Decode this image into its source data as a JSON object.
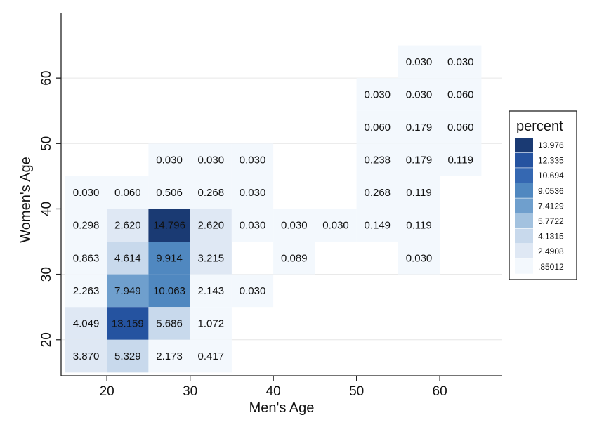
{
  "chart_data": {
    "type": "heatmap",
    "title": "",
    "xlabel": "Men's Age",
    "ylabel": "Women's Age",
    "xlim": [
      14.5,
      67.5
    ],
    "ylim": [
      14.5,
      70
    ],
    "x_ticks": [
      "20",
      "30",
      "40",
      "50",
      "60"
    ],
    "y_ticks": [
      "20",
      "30",
      "40",
      "50",
      "60"
    ],
    "x_tick_values": [
      20,
      30,
      40,
      50,
      60
    ],
    "y_tick_values": [
      20,
      30,
      40,
      50,
      60
    ],
    "grid": true,
    "cell_width": 5,
    "cell_height": 5,
    "legend": {
      "title": "percent",
      "placement": "right",
      "entries": [
        "13.976",
        "12.335",
        "10.694",
        "9.0536",
        "7.4129",
        "5.7722",
        "4.1315",
        "2.4908",
        ".85012"
      ],
      "colors": [
        "#1a3a73",
        "#2553a0",
        "#3568b2",
        "#5088c0",
        "#6f9fcd",
        "#a3c2df",
        "#c8d9ec",
        "#dfe8f4",
        "#f3f8fd"
      ]
    },
    "cells": [
      {
        "x": 57.5,
        "y": 62.5,
        "label": "0.030",
        "value": 0.03
      },
      {
        "x": 62.5,
        "y": 62.5,
        "label": "0.030",
        "value": 0.03
      },
      {
        "x": 52.5,
        "y": 57.5,
        "label": "0.030",
        "value": 0.03
      },
      {
        "x": 57.5,
        "y": 57.5,
        "label": "0.030",
        "value": 0.03
      },
      {
        "x": 62.5,
        "y": 57.5,
        "label": "0.060",
        "value": 0.06
      },
      {
        "x": 52.5,
        "y": 52.5,
        "label": "0.060",
        "value": 0.06
      },
      {
        "x": 57.5,
        "y": 52.5,
        "label": "0.179",
        "value": 0.179
      },
      {
        "x": 62.5,
        "y": 52.5,
        "label": "0.060",
        "value": 0.06
      },
      {
        "x": 27.5,
        "y": 47.5,
        "label": "0.030",
        "value": 0.03
      },
      {
        "x": 32.5,
        "y": 47.5,
        "label": "0.030",
        "value": 0.03
      },
      {
        "x": 37.5,
        "y": 47.5,
        "label": "0.030",
        "value": 0.03
      },
      {
        "x": 52.5,
        "y": 47.5,
        "label": "0.238",
        "value": 0.238
      },
      {
        "x": 57.5,
        "y": 47.5,
        "label": "0.179",
        "value": 0.179
      },
      {
        "x": 62.5,
        "y": 47.5,
        "label": "0.119",
        "value": 0.119
      },
      {
        "x": 17.5,
        "y": 42.5,
        "label": "0.030",
        "value": 0.03
      },
      {
        "x": 22.5,
        "y": 42.5,
        "label": "0.060",
        "value": 0.06
      },
      {
        "x": 27.5,
        "y": 42.5,
        "label": "0.506",
        "value": 0.506
      },
      {
        "x": 32.5,
        "y": 42.5,
        "label": "0.268",
        "value": 0.268
      },
      {
        "x": 37.5,
        "y": 42.5,
        "label": "0.030",
        "value": 0.03
      },
      {
        "x": 52.5,
        "y": 42.5,
        "label": "0.268",
        "value": 0.268
      },
      {
        "x": 57.5,
        "y": 42.5,
        "label": "0.119",
        "value": 0.119
      },
      {
        "x": 17.5,
        "y": 37.5,
        "label": "0.298",
        "value": 0.298
      },
      {
        "x": 22.5,
        "y": 37.5,
        "label": "2.620",
        "value": 2.62
      },
      {
        "x": 27.5,
        "y": 37.5,
        "label": "14.796",
        "value": 14.796
      },
      {
        "x": 32.5,
        "y": 37.5,
        "label": "2.620",
        "value": 2.62
      },
      {
        "x": 37.5,
        "y": 37.5,
        "label": "0.030",
        "value": 0.03
      },
      {
        "x": 42.5,
        "y": 37.5,
        "label": "0.030",
        "value": 0.03
      },
      {
        "x": 47.5,
        "y": 37.5,
        "label": "0.030",
        "value": 0.03
      },
      {
        "x": 52.5,
        "y": 37.5,
        "label": "0.149",
        "value": 0.149
      },
      {
        "x": 57.5,
        "y": 37.5,
        "label": "0.119",
        "value": 0.119
      },
      {
        "x": 17.5,
        "y": 32.5,
        "label": "0.863",
        "value": 0.863
      },
      {
        "x": 22.5,
        "y": 32.5,
        "label": "4.614",
        "value": 4.614
      },
      {
        "x": 27.5,
        "y": 32.5,
        "label": "9.914",
        "value": 9.914
      },
      {
        "x": 32.5,
        "y": 32.5,
        "label": "3.215",
        "value": 3.215
      },
      {
        "x": 42.5,
        "y": 32.5,
        "label": "0.089",
        "value": 0.089
      },
      {
        "x": 57.5,
        "y": 32.5,
        "label": "0.030",
        "value": 0.03
      },
      {
        "x": 17.5,
        "y": 27.5,
        "label": "2.263",
        "value": 2.263
      },
      {
        "x": 22.5,
        "y": 27.5,
        "label": "7.949",
        "value": 7.949
      },
      {
        "x": 27.5,
        "y": 27.5,
        "label": "10.063",
        "value": 10.063
      },
      {
        "x": 32.5,
        "y": 27.5,
        "label": "2.143",
        "value": 2.143
      },
      {
        "x": 37.5,
        "y": 27.5,
        "label": "0.030",
        "value": 0.03
      },
      {
        "x": 17.5,
        "y": 22.5,
        "label": "4.049",
        "value": 4.049
      },
      {
        "x": 22.5,
        "y": 22.5,
        "label": "13.159",
        "value": 13.159
      },
      {
        "x": 27.5,
        "y": 22.5,
        "label": "5.686",
        "value": 5.686
      },
      {
        "x": 32.5,
        "y": 22.5,
        "label": "1.072",
        "value": 1.072
      },
      {
        "x": 17.5,
        "y": 17.5,
        "label": "3.870",
        "value": 3.87
      },
      {
        "x": 22.5,
        "y": 17.5,
        "label": "5.329",
        "value": 5.329
      },
      {
        "x": 27.5,
        "y": 17.5,
        "label": "2.173",
        "value": 2.173
      },
      {
        "x": 32.5,
        "y": 17.5,
        "label": "0.417",
        "value": 0.417
      }
    ]
  }
}
